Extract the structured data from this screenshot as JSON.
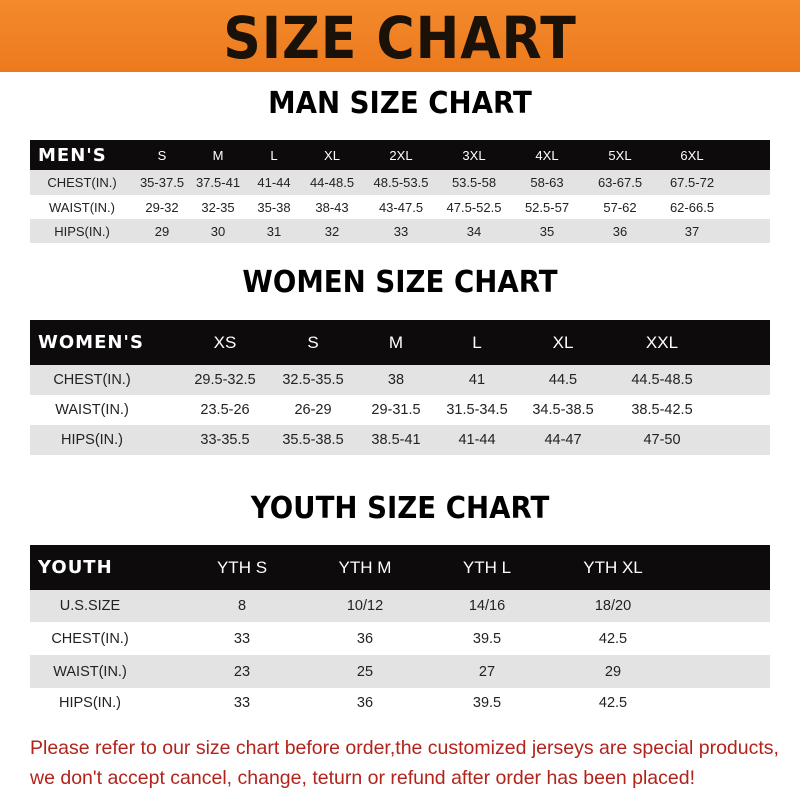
{
  "banner": {
    "title": "SIZE CHART",
    "color": "#f0822a"
  },
  "men": {
    "title": "MAN SIZE CHART",
    "header": [
      "MEN'S",
      "S",
      "M",
      "L",
      "XL",
      "2XL",
      "3XL",
      "4XL",
      "5XL",
      "6XL"
    ],
    "rows": [
      [
        "CHEST(IN.)",
        "35-37.5",
        "37.5-41",
        "41-44",
        "44-48.5",
        "48.5-53.5",
        "53.5-58",
        "58-63",
        "63-67.5",
        "67.5-72"
      ],
      [
        "WAIST(IN.)",
        "29-32",
        "32-35",
        "35-38",
        "38-43",
        "43-47.5",
        "47.5-52.5",
        "52.5-57",
        "57-62",
        "62-66.5"
      ],
      [
        "HIPS(IN.)",
        "29",
        "30",
        "31",
        "32",
        "33",
        "34",
        "35",
        "36",
        "37"
      ]
    ]
  },
  "women": {
    "title": "WOMEN SIZE CHART",
    "header": [
      "WOMEN'S",
      "XS",
      "S",
      "M",
      "L",
      "XL",
      "XXL"
    ],
    "rows": [
      [
        "CHEST(IN.)",
        "29.5-32.5",
        "32.5-35.5",
        "38",
        "41",
        "44.5",
        "44.5-48.5"
      ],
      [
        "WAIST(IN.)",
        "23.5-26",
        "26-29",
        "29-31.5",
        "31.5-34.5",
        "34.5-38.5",
        "38.5-42.5"
      ],
      [
        "HIPS(IN.)",
        "33-35.5",
        "35.5-38.5",
        "38.5-41",
        "41-44",
        "44-47",
        "47-50"
      ]
    ]
  },
  "youth": {
    "title": "YOUTH SIZE CHART",
    "header": [
      "YOUTH",
      "YTH S",
      "YTH M",
      "YTH L",
      "YTH XL"
    ],
    "rows": [
      [
        "U.S.SIZE",
        "8",
        "10/12",
        "14/16",
        "18/20"
      ],
      [
        "CHEST(IN.)",
        "33",
        "36",
        "39.5",
        "42.5"
      ],
      [
        "WAIST(IN.)",
        "23",
        "25",
        "27",
        "29"
      ],
      [
        "HIPS(IN.)",
        "33",
        "36",
        "39.5",
        "42.5"
      ]
    ]
  },
  "notice": {
    "line1": "Please refer to our size chart before order,the customized jerseys are special products,",
    "line2": "we don't accept cancel, change, teturn or refund after order has been placed!",
    "color": "#b3231c"
  }
}
